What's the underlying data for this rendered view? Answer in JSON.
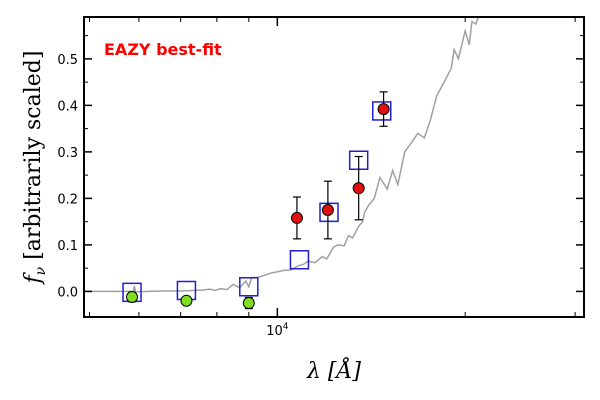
{
  "chart_data": {
    "type": "scatter",
    "title": "",
    "annotation": "EAZY best-fit",
    "xlabel": "λ [Å]",
    "ylabel": "f_ν [arbitrarily scaled]",
    "xscale": "log",
    "xlim": [
      4900,
      31000
    ],
    "ylim": [
      -0.055,
      0.59
    ],
    "yticks": [
      0.0,
      0.1,
      0.2,
      0.3,
      0.4,
      0.5
    ],
    "ytick_labels": [
      "0.0",
      "0.1",
      "0.2",
      "0.3",
      "0.4",
      "0.5"
    ],
    "xtick_label": "10^4",
    "grid": false,
    "colors": {
      "sed_line": "#a0a0a0",
      "model_squares": "#1f1fd0",
      "red_points": "#e01010",
      "green_points": "#80e020",
      "annotation": "#ff0000"
    },
    "series": [
      {
        "role": "best-fit-sed",
        "style": "line",
        "x": [
          4900,
          5880,
          5900,
          5920,
          5940,
          6200,
          6600,
          7000,
          7300,
          7600,
          7800,
          7950,
          8100,
          8300,
          8500,
          8700,
          8900,
          9000,
          9100,
          9300,
          9500,
          9800,
          10000,
          10200,
          10500,
          10800,
          11000,
          11200,
          11500,
          11800,
          12000,
          12300,
          12500,
          12800,
          13000,
          13200,
          13500,
          13700,
          13800,
          14000,
          14300,
          14600,
          15000,
          15300,
          15600,
          16000,
          16400,
          16800,
          17200,
          17600,
          18000,
          18500,
          19000,
          19200,
          19500,
          20000,
          20300,
          20500,
          20800,
          21000,
          22000
        ],
        "y": [
          0.0,
          0.0,
          0.012,
          0.0,
          -0.001,
          0.0,
          0.001,
          0.001,
          0.002,
          0.003,
          0.005,
          0.002,
          0.006,
          0.004,
          0.015,
          0.008,
          0.022,
          0.01,
          0.03,
          0.03,
          0.034,
          0.04,
          0.042,
          0.045,
          0.046,
          0.055,
          0.058,
          0.065,
          0.062,
          0.075,
          0.07,
          0.095,
          0.1,
          0.098,
          0.12,
          0.115,
          0.14,
          0.15,
          0.17,
          0.185,
          0.2,
          0.245,
          0.22,
          0.26,
          0.23,
          0.3,
          0.32,
          0.34,
          0.33,
          0.37,
          0.42,
          0.45,
          0.48,
          0.52,
          0.5,
          0.56,
          0.53,
          0.58,
          0.575,
          0.59,
          0.6
        ]
      },
      {
        "role": "model-photometry",
        "style": "open-square",
        "x": [
          5850,
          7150,
          9000,
          10850,
          12100,
          13500,
          14700
        ],
        "y": [
          -0.002,
          0.002,
          0.01,
          0.068,
          0.17,
          0.282,
          0.388
        ]
      },
      {
        "role": "observed-detections",
        "style": "filled-circle",
        "x": [
          10750,
          12050,
          13500,
          14800
        ],
        "y": [
          0.158,
          0.175,
          0.222,
          0.392
        ],
        "yerr": [
          0.045,
          0.062,
          0.068,
          0.037
        ]
      },
      {
        "role": "observed-upper",
        "style": "filled-circle",
        "x": [
          5850,
          7150,
          9000
        ],
        "y": [
          -0.012,
          -0.02,
          -0.025
        ],
        "yerr": [
          0.01,
          0.0,
          0.012
        ]
      }
    ]
  }
}
